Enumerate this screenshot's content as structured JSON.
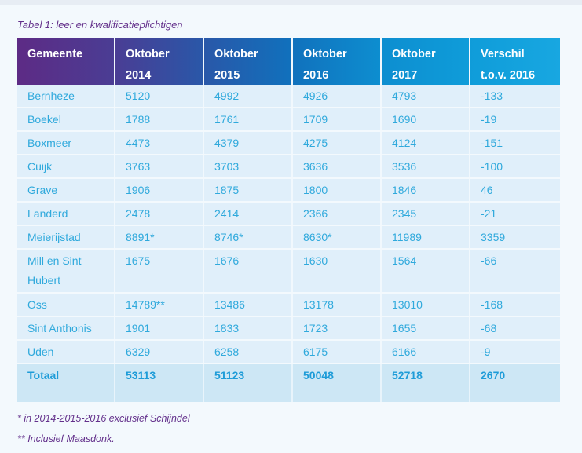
{
  "page": {
    "title": "Tabel 1: leer en kwalificatieplichtigen",
    "footnotes": [
      "* in 2014-2015-2016 exclusief Schijndel",
      "** Inclusief Maasdonk."
    ]
  },
  "colors": {
    "header_gradient_left": "#5d2b85",
    "header_gradient_right": "#18a7e1",
    "data_text": "#2fa9dc",
    "total_text": "#1e9cd8",
    "caption_text": "#63308b",
    "row_background": "#e0effa",
    "total_row_background": "#cde7f5",
    "page_background": "#f3f9fd"
  },
  "table": {
    "headers": [
      {
        "line1": "Gemeente",
        "line2": ""
      },
      {
        "line1": "Oktober",
        "line2": "2014"
      },
      {
        "line1": "Oktober",
        "line2": "2015"
      },
      {
        "line1": "Oktober",
        "line2": "2016"
      },
      {
        "line1": "Oktober",
        "line2": "2017"
      },
      {
        "line1": "Verschil",
        "line2": "t.o.v. 2016"
      }
    ],
    "rows": [
      {
        "gemeente": "Bernheze",
        "values": [
          "5120",
          "4992",
          "4926",
          "4793",
          "-133"
        ]
      },
      {
        "gemeente": "Boekel",
        "values": [
          "1788",
          "1761",
          "1709",
          "1690",
          "-19"
        ]
      },
      {
        "gemeente": "Boxmeer",
        "values": [
          "4473",
          "4379",
          "4275",
          "4124",
          "-151"
        ]
      },
      {
        "gemeente": "Cuijk",
        "values": [
          "3763",
          "3703",
          "3636",
          "3536",
          "-100"
        ]
      },
      {
        "gemeente": "Grave",
        "values": [
          "1906",
          "1875",
          "1800",
          "1846",
          "46"
        ]
      },
      {
        "gemeente": "Landerd",
        "values": [
          "2478",
          "2414",
          "2366",
          "2345",
          "-21"
        ]
      },
      {
        "gemeente": "Meierijstad",
        "values": [
          "8891*",
          "8746*",
          "8630*",
          "11989",
          "3359"
        ]
      },
      {
        "gemeente": "Mill en Sint Hubert",
        "values": [
          "1675",
          "1676",
          "1630",
          "1564",
          "-66"
        ]
      },
      {
        "gemeente": "Oss",
        "values": [
          "14789**",
          "13486",
          "13178",
          "13010",
          "-168"
        ]
      },
      {
        "gemeente": "Sint Anthonis",
        "values": [
          "1901",
          "1833",
          "1723",
          "1655",
          "-68"
        ]
      },
      {
        "gemeente": "Uden",
        "values": [
          "6329",
          "6258",
          "6175",
          "6166",
          "-9"
        ]
      }
    ],
    "total": {
      "gemeente": "Totaal",
      "values": [
        "53113",
        "51123",
        "50048",
        "52718",
        "2670"
      ]
    }
  }
}
